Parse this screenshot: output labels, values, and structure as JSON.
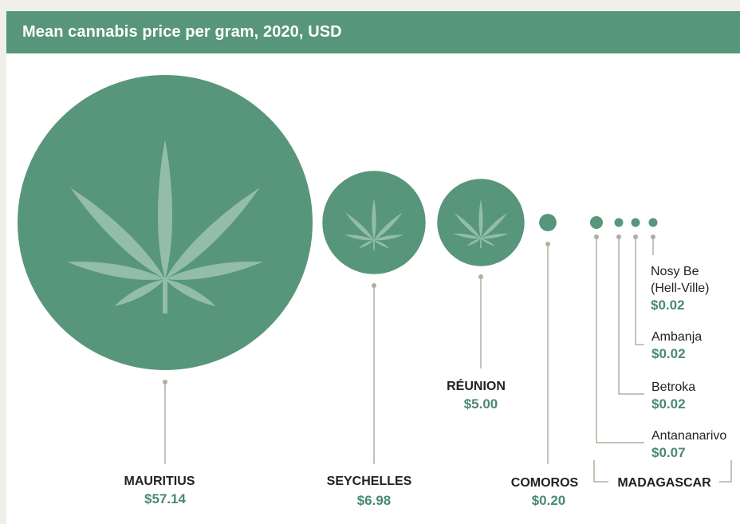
{
  "title": "Mean cannabis price per gram, 2020, USD",
  "colors": {
    "bubble": "#57967a",
    "leaf": "#93bda6",
    "value": "#4a8a6e",
    "leader": "#b3ad9f",
    "header": "#57967a"
  },
  "chart_data": {
    "type": "bubble",
    "title": "Mean cannabis price per gram, 2020, USD",
    "unit": "USD per gram",
    "series": [
      {
        "name": "MAURITIUS",
        "value": 57.14,
        "label": "$57.14",
        "icon": "cannabis-leaf-icon"
      },
      {
        "name": "SEYCHELLES",
        "value": 6.98,
        "label": "$6.98",
        "icon": "cannabis-leaf-icon"
      },
      {
        "name": "RÉUNION",
        "value": 5.0,
        "label": "$5.00",
        "icon": "cannabis-leaf-icon"
      },
      {
        "name": "COMOROS",
        "value": 0.2,
        "label": "$0.20"
      }
    ],
    "group": {
      "name": "MADAGASCAR",
      "items": [
        {
          "name": "Antananarivo",
          "value": 0.07,
          "label": "$0.07"
        },
        {
          "name": "Betroka",
          "value": 0.02,
          "label": "$0.02"
        },
        {
          "name": "Ambanja",
          "value": 0.02,
          "label": "$0.02"
        },
        {
          "name": "Nosy Be",
          "name_line2": "(Hell-Ville)",
          "value": 0.02,
          "label": "$0.02"
        }
      ]
    }
  }
}
